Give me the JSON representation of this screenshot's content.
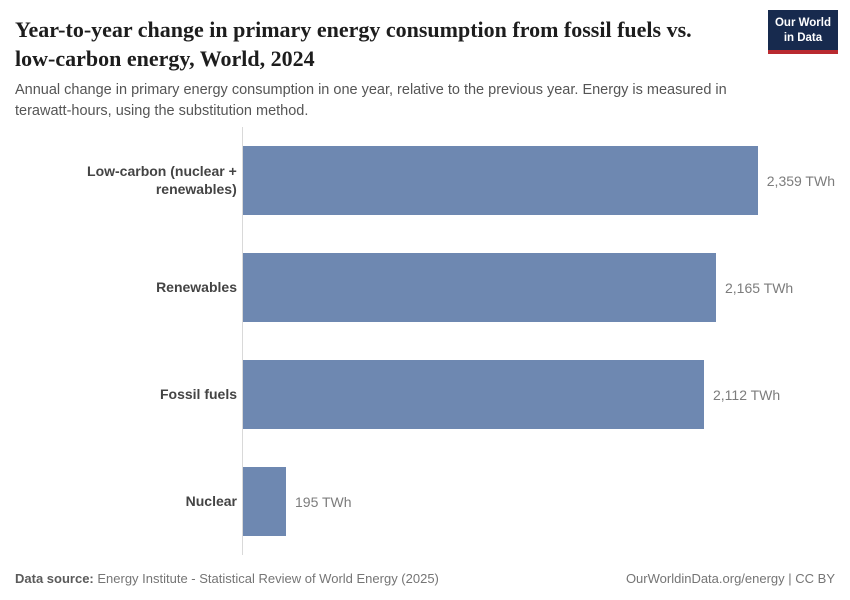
{
  "header": {
    "title": "Year-to-year change in primary energy consumption from fossil fuels vs. low-carbon energy, World, 2024",
    "subtitle": "Annual change in primary energy consumption in one year, relative to the previous year. Energy is measured in terawatt-hours, using the substitution method.",
    "logo": {
      "line1": "Our World",
      "line2": "in Data"
    }
  },
  "chart_data": {
    "type": "bar",
    "orientation": "horizontal",
    "categories": [
      "Low-carbon (nuclear + renewables)",
      "Renewables",
      "Fossil fuels",
      "Nuclear"
    ],
    "values": [
      2359,
      2165,
      2112,
      195
    ],
    "value_labels": [
      "2,359 TWh",
      "2,165 TWh",
      "2,112 TWh",
      "195 TWh"
    ],
    "unit": "TWh",
    "title": "Year-to-year change in primary energy consumption from fossil fuels vs. low-carbon energy, World, 2024",
    "xlabel": "",
    "ylabel": "",
    "xlim": [
      0,
      2359
    ],
    "grid": false,
    "legend": false,
    "bar_color": "#6e88b1",
    "axis_line_color": "#d9d9d9"
  },
  "footer": {
    "datasource_label": "Data source:",
    "datasource_text": " Energy Institute - Statistical Review of World Energy (2025)",
    "right_text": "OurWorldinData.org/energy | CC BY"
  },
  "colors": {
    "title": "#1d1d1d",
    "subtitle": "#555555",
    "category_label": "#444444",
    "value_label": "#7c7c7c",
    "logo_bg": "#172a4e",
    "logo_accent": "#b92a30"
  }
}
